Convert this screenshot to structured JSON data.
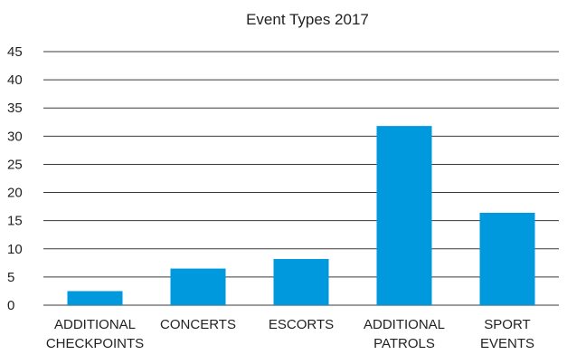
{
  "chart_data": {
    "type": "bar",
    "title": "Event Types 2017",
    "xlabel": "",
    "ylabel": "",
    "categories": [
      [
        "ADDITIONAL",
        "CHECKPOINTS"
      ],
      [
        "CONCERTS"
      ],
      [
        "ESCORTS"
      ],
      [
        "ADDITIONAL",
        "PATROLS"
      ],
      [
        "SPORT",
        "EVENTS"
      ]
    ],
    "values": [
      2.5,
      6.5,
      8.2,
      31.8,
      16.4
    ],
    "ylim": [
      0,
      45
    ],
    "yticks": [
      0,
      5,
      10,
      15,
      20,
      25,
      30,
      35,
      40,
      45
    ],
    "grid": true,
    "legend": "none",
    "bar_color": "#0099dd"
  }
}
